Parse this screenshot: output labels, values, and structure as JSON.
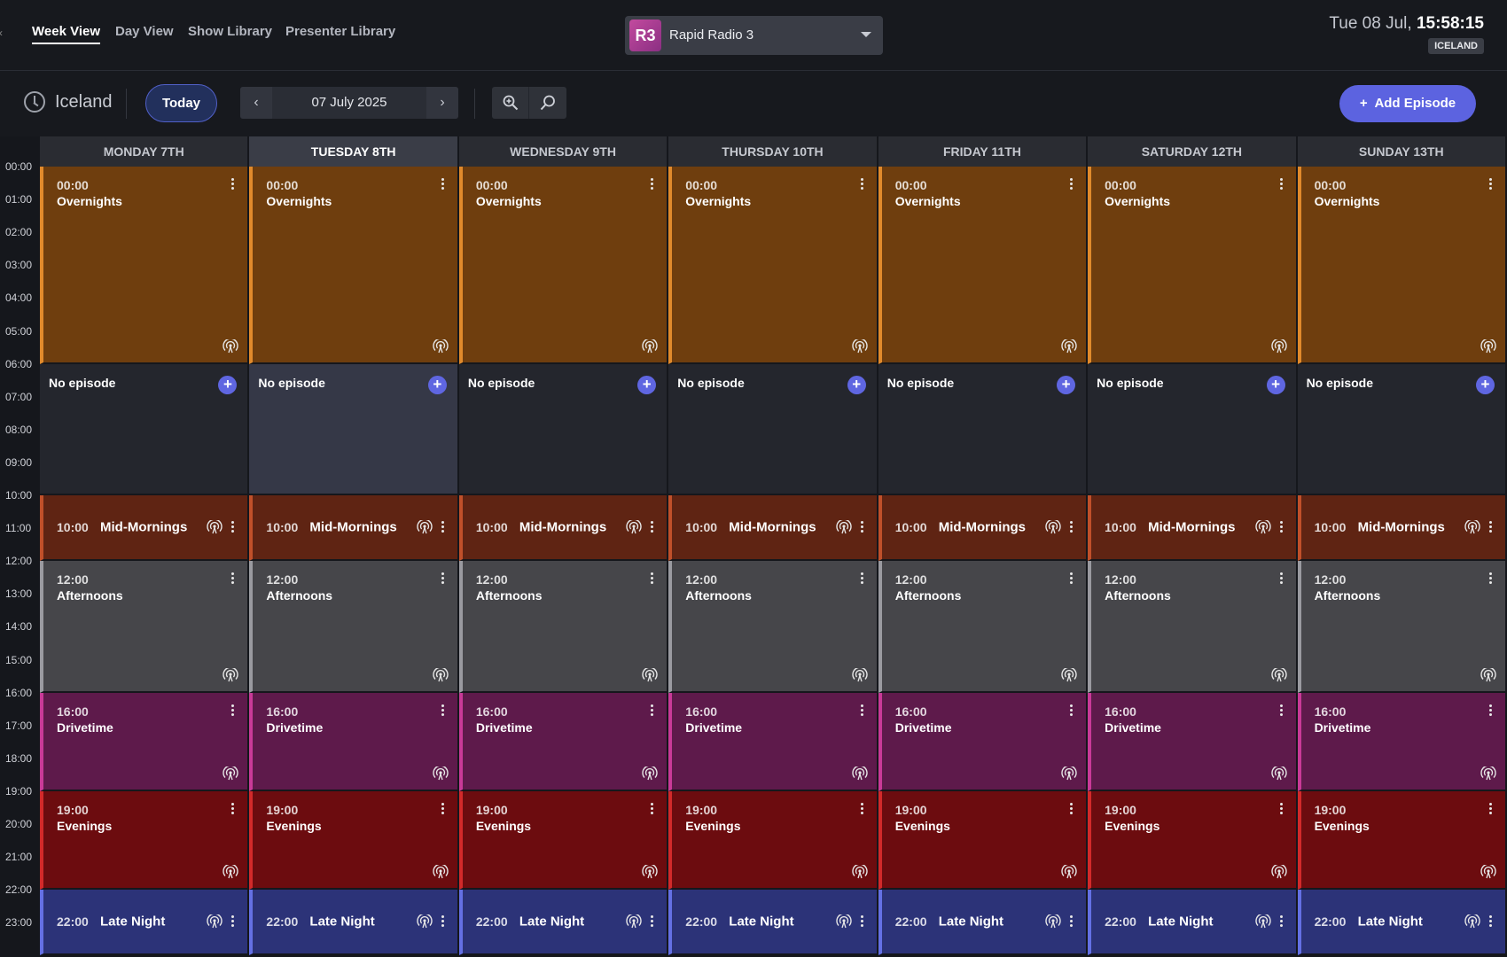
{
  "nav": {
    "tabs": [
      {
        "label": "Week View",
        "active": true
      },
      {
        "label": "Day View",
        "active": false
      },
      {
        "label": "Show Library",
        "active": false
      },
      {
        "label": "Presenter Library",
        "active": false
      }
    ]
  },
  "station": {
    "logo": "R3",
    "name": "Rapid Radio 3",
    "logo_color": "#b0408f"
  },
  "clock": {
    "date": "Tue 08 Jul,",
    "time": "15:58:15",
    "timezone_badge": "ICELAND"
  },
  "toolbar": {
    "timezone": "Iceland",
    "today_label": "Today",
    "current_date": "07 July 2025",
    "prev_icon": "chevron-left-icon",
    "next_icon": "chevron-right-icon",
    "zoom_in_icon": "zoom-in-icon",
    "zoom_out_icon": "zoom-out-icon",
    "add_episode_label": "Add Episode",
    "add_icon": "+"
  },
  "calendar": {
    "hours": [
      "00:00",
      "01:00",
      "02:00",
      "03:00",
      "04:00",
      "05:00",
      "06:00",
      "07:00",
      "08:00",
      "09:00",
      "10:00",
      "11:00",
      "12:00",
      "13:00",
      "14:00",
      "15:00",
      "16:00",
      "17:00",
      "18:00",
      "19:00",
      "20:00",
      "21:00",
      "22:00",
      "23:00"
    ],
    "days": [
      {
        "label": "MONDAY 7TH",
        "today": false
      },
      {
        "label": "TUESDAY 8TH",
        "today": true
      },
      {
        "label": "WEDNESDAY 9TH",
        "today": false
      },
      {
        "label": "THURSDAY 10TH",
        "today": false
      },
      {
        "label": "FRIDAY 11TH",
        "today": false
      },
      {
        "label": "SATURDAY 12TH",
        "today": false
      },
      {
        "label": "SUNDAY 13TH",
        "today": false
      }
    ],
    "blocks": [
      {
        "kind": "show",
        "time": "00:00",
        "title": "Overnights",
        "start_hour": 0,
        "end_hour": 6,
        "layout": "stacked",
        "bg": "#6f3e0e",
        "accent": "#e08a2c"
      },
      {
        "kind": "empty",
        "label": "No episode",
        "start_hour": 6,
        "end_hour": 10,
        "bg": "#24262d",
        "bg_today": "#353847"
      },
      {
        "kind": "show",
        "time": "10:00",
        "title": "Mid-Mornings",
        "start_hour": 10,
        "end_hour": 12,
        "layout": "inline",
        "bg": "#5f2413",
        "accent": "#c0502a"
      },
      {
        "kind": "show",
        "time": "12:00",
        "title": "Afternoons",
        "start_hour": 12,
        "end_hour": 16,
        "layout": "stacked",
        "bg": "#46464a",
        "accent": "#9a9aa0"
      },
      {
        "kind": "show",
        "time": "16:00",
        "title": "Drivetime",
        "start_hour": 16,
        "end_hour": 19,
        "layout": "stacked",
        "bg": "#5e1a4b",
        "accent": "#c93a98"
      },
      {
        "kind": "show",
        "time": "19:00",
        "title": "Evenings",
        "start_hour": 19,
        "end_hour": 22,
        "layout": "stacked",
        "bg": "#6c0c0f",
        "accent": "#d22a2a"
      },
      {
        "kind": "show",
        "time": "22:00",
        "title": "Late Night",
        "start_hour": 22,
        "end_hour": 24,
        "layout": "inline",
        "bg": "#2c3378",
        "accent": "#6470e4"
      }
    ]
  }
}
